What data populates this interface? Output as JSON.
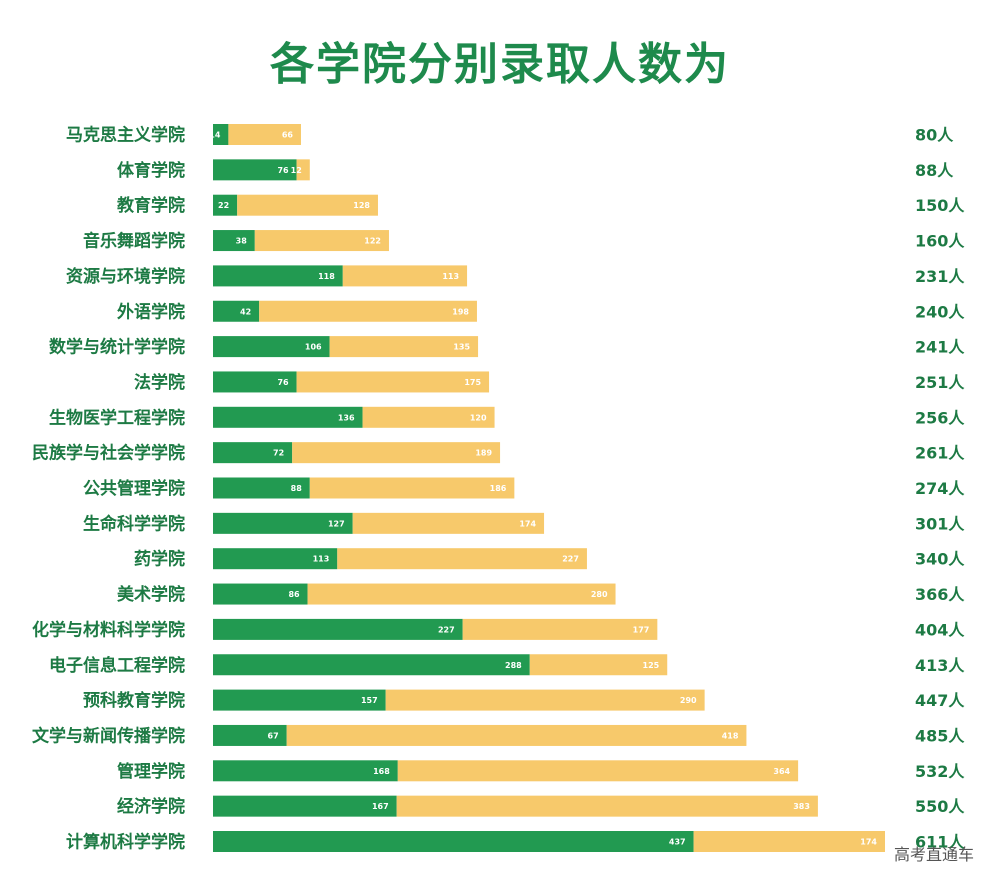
{
  "chart_data": {
    "type": "bar",
    "orientation": "horizontal",
    "stacked": true,
    "title": "各学院分别录取人数为",
    "categories": [
      "马克思主义学院",
      "体育学院",
      "教育学院",
      "音乐舞蹈学院",
      "资源与环境学院",
      "外语学院",
      "数学与统计学学院",
      "法学院",
      "生物医学工程学院",
      "民族学与社会学学院",
      "公共管理学院",
      "生命科学学院",
      "药学院",
      "美术学院",
      "化学与材料科学学院",
      "电子信息工程学院",
      "预科教育学院",
      "文学与新闻传播学院",
      "管理学院",
      "经济学院",
      "计算机科学学院"
    ],
    "series": [
      {
        "values": [
          14,
          76,
          22,
          38,
          118,
          42,
          106,
          76,
          136,
          72,
          88,
          127,
          113,
          86,
          227,
          288,
          157,
          67,
          168,
          167,
          437
        ]
      },
      {
        "values": [
          66,
          12,
          128,
          122,
          113,
          198,
          135,
          175,
          120,
          189,
          186,
          174,
          227,
          280,
          177,
          125,
          290,
          418,
          364,
          383,
          174
        ]
      }
    ],
    "totals": [
      "80人",
      "88人",
      "150人",
      "160人",
      "231人",
      "240人",
      "241人",
      "251人",
      "256人",
      "261人",
      "274人",
      "301人",
      "340人",
      "366人",
      "404人",
      "413人",
      "447人",
      "485人",
      "532人",
      "550人",
      "611人"
    ],
    "xlim": [
      0,
      611
    ],
    "grid": false,
    "colors": {
      "series1": "#229a51",
      "series2": "#f7c96b",
      "label1": "#ffffff",
      "label2": "#ffffff",
      "text": "#1d7a44"
    }
  },
  "watermark": "高考直通车"
}
